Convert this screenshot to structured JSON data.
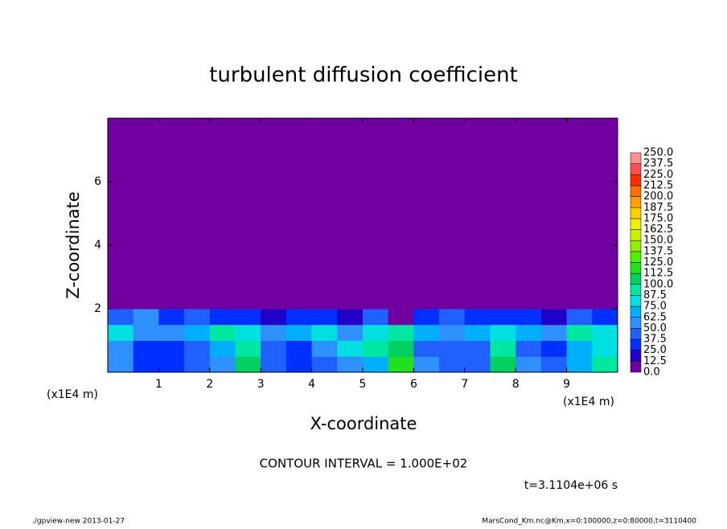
{
  "chart_data": {
    "type": "heatmap",
    "title": "turbulent diffusion coefficient",
    "x_label": "X-coordinate",
    "y_label": "Z-coordinate",
    "x_unit": "(x1E4 m)",
    "x_unit_right": "(x1E4 m)",
    "xlim": [
      0,
      10
    ],
    "xticks": [
      1,
      2,
      3,
      4,
      5,
      6,
      7,
      8,
      9
    ],
    "ylim": [
      0,
      8
    ],
    "yticks": [
      2,
      4,
      6
    ],
    "x": [
      0.25,
      0.75,
      1.25,
      1.75,
      2.25,
      2.75,
      3.25,
      3.75,
      4.25,
      4.75,
      5.25,
      5.75,
      6.25,
      6.75,
      7.25,
      7.75,
      8.25,
      8.75,
      9.25,
      9.75
    ],
    "y": [
      0.25,
      0.75,
      1.25,
      1.75,
      2.25,
      2.75,
      3.25,
      3.75,
      4.25,
      4.75,
      5.25,
      5.75,
      6.25,
      6.75,
      7.25,
      7.75
    ],
    "values": [
      [
        50,
        30,
        25,
        40,
        60,
        100,
        45,
        30,
        40,
        60,
        70,
        120,
        50,
        40,
        45,
        100,
        55,
        40,
        70,
        90
      ],
      [
        60,
        30,
        25,
        45,
        70,
        90,
        40,
        30,
        55,
        80,
        90,
        110,
        45,
        40,
        40,
        90,
        45,
        35,
        65,
        80
      ],
      [
        80,
        55,
        50,
        70,
        90,
        80,
        60,
        65,
        75,
        60,
        80,
        90,
        70,
        60,
        65,
        80,
        70,
        60,
        90,
        75
      ],
      [
        40,
        50,
        35,
        45,
        30,
        25,
        20,
        25,
        30,
        15,
        40,
        10,
        30,
        40,
        30,
        25,
        35,
        20,
        40,
        30
      ],
      [
        0,
        0,
        0,
        0,
        0,
        0,
        0,
        0,
        0,
        0,
        0,
        0,
        0,
        0,
        0,
        0,
        0,
        0,
        0,
        0
      ],
      [
        0,
        0,
        0,
        0,
        0,
        0,
        0,
        0,
        0,
        0,
        0,
        0,
        0,
        0,
        0,
        0,
        0,
        0,
        0,
        0
      ],
      [
        0,
        0,
        0,
        0,
        0,
        0,
        0,
        0,
        0,
        0,
        0,
        0,
        0,
        0,
        0,
        0,
        0,
        0,
        0,
        0
      ],
      [
        0,
        0,
        0,
        0,
        0,
        0,
        0,
        0,
        0,
        0,
        0,
        0,
        0,
        0,
        0,
        0,
        0,
        0,
        0,
        0
      ],
      [
        0,
        0,
        0,
        0,
        0,
        0,
        0,
        0,
        0,
        0,
        0,
        0,
        0,
        0,
        0,
        0,
        0,
        0,
        0,
        0
      ],
      [
        0,
        0,
        0,
        0,
        0,
        0,
        0,
        0,
        0,
        0,
        0,
        0,
        0,
        0,
        0,
        0,
        0,
        0,
        0,
        0
      ],
      [
        0,
        0,
        0,
        0,
        0,
        0,
        0,
        0,
        0,
        0,
        0,
        0,
        0,
        0,
        0,
        0,
        0,
        0,
        0,
        0
      ],
      [
        0,
        0,
        0,
        0,
        0,
        0,
        0,
        0,
        0,
        0,
        0,
        0,
        0,
        0,
        0,
        0,
        0,
        0,
        0,
        0
      ],
      [
        0,
        0,
        0,
        0,
        0,
        0,
        0,
        0,
        0,
        0,
        0,
        0,
        0,
        0,
        0,
        0,
        0,
        0,
        0,
        0
      ],
      [
        0,
        0,
        0,
        0,
        0,
        0,
        0,
        0,
        0,
        0,
        0,
        0,
        0,
        0,
        0,
        0,
        0,
        0,
        0,
        0
      ],
      [
        0,
        0,
        0,
        0,
        0,
        0,
        0,
        0,
        0,
        0,
        0,
        0,
        0,
        0,
        0,
        0,
        0,
        0,
        0,
        0
      ],
      [
        0,
        0,
        0,
        0,
        0,
        0,
        0,
        0,
        0,
        0,
        0,
        0,
        0,
        0,
        0,
        0,
        0,
        0,
        0,
        0
      ]
    ],
    "levels": [
      {
        "value": 0,
        "label": "0.0"
      },
      {
        "value": 12.5,
        "label": "12.5"
      },
      {
        "value": 25,
        "label": "25.0"
      },
      {
        "value": 37.5,
        "label": "37.5"
      },
      {
        "value": 50,
        "label": "50.0"
      },
      {
        "value": 62.5,
        "label": "62.5"
      },
      {
        "value": 75,
        "label": "75.0"
      },
      {
        "value": 87.5,
        "label": "87.5"
      },
      {
        "value": 100,
        "label": "100.0"
      },
      {
        "value": 112.5,
        "label": "112.5"
      },
      {
        "value": 125,
        "label": "125.0"
      },
      {
        "value": 137.5,
        "label": "137.5"
      },
      {
        "value": 150,
        "label": "150.0"
      },
      {
        "value": 162.5,
        "label": "162.5"
      },
      {
        "value": 175,
        "label": "175.0"
      },
      {
        "value": 187.5,
        "label": "187.5"
      },
      {
        "value": 200,
        "label": "200.0"
      },
      {
        "value": 212.5,
        "label": "212.5"
      },
      {
        "value": 225,
        "label": "225.0"
      },
      {
        "value": 237.5,
        "label": "237.5"
      },
      {
        "value": 250,
        "label": "250.0"
      }
    ],
    "level_colors": [
      "#7000a0",
      "#2000c8",
      "#0030ff",
      "#2060ff",
      "#3090ff",
      "#00b0ff",
      "#00e0e0",
      "#00e8a0",
      "#00d060",
      "#20e020",
      "#50f000",
      "#90f000",
      "#c8f000",
      "#f0f000",
      "#ffd000",
      "#ffa000",
      "#ff7000",
      "#ff3000",
      "#ff5050",
      "#ff9090"
    ],
    "annotations": [
      "CONTOUR INTERVAL = 1.000E+02",
      "t=3.1104e+06 s",
      "./gpview-new  2013-01-27",
      "MarsCond_Km.nc@Km,x=0:100000,z=0:80000,t=3110400"
    ]
  }
}
